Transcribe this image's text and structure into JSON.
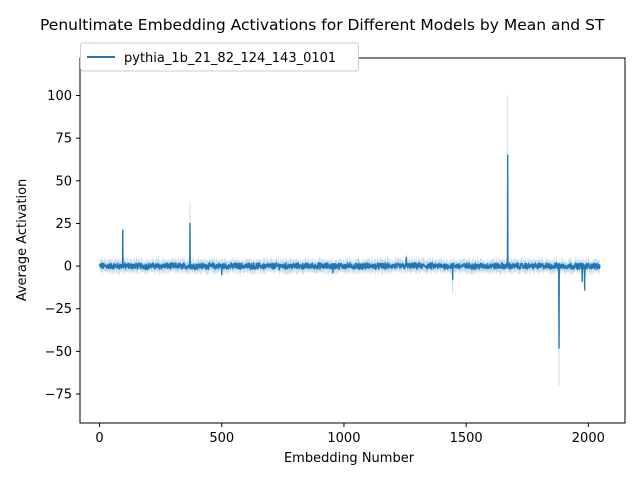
{
  "colors": {
    "series": "#1f77b4",
    "band": "#a6c8e6"
  },
  "chart_data": {
    "type": "line",
    "title": "Penultimate Embedding Activations for Different Models by Mean and ST",
    "xlabel": "Embedding Number",
    "ylabel": "Average Activation",
    "xlim": [
      -80,
      2150
    ],
    "ylim": [
      -92,
      122
    ],
    "xticks": [
      0,
      500,
      1000,
      1500,
      2000
    ],
    "yticks": [
      -75,
      -50,
      -25,
      0,
      25,
      50,
      75,
      100
    ],
    "xtick_labels": [
      "0",
      "500",
      "1000",
      "1500",
      "2000"
    ],
    "ytick_labels": [
      "−75",
      "−50",
      "−25",
      "0",
      "25",
      "50",
      "75",
      "100"
    ],
    "grid": false,
    "legend_position": "top-left",
    "x_count": 2048,
    "series": [
      {
        "name": "pythia_1b_21_82_124_143_0101",
        "color": "#1f77b4",
        "baseline_noise": 1.5,
        "band_width": 3.5,
        "spikes": [
          {
            "x": 95,
            "y": 21
          },
          {
            "x": 370,
            "y": 25
          },
          {
            "x": 500,
            "y": -5
          },
          {
            "x": 955,
            "y": -4
          },
          {
            "x": 1255,
            "y": 5
          },
          {
            "x": 1445,
            "y": -8
          },
          {
            "x": 1670,
            "y": 65
          },
          {
            "x": 1880,
            "y": -48
          },
          {
            "x": 1975,
            "y": -9
          },
          {
            "x": 1985,
            "y": -14
          }
        ],
        "band_spikes": [
          {
            "x": 370,
            "upper": 38
          },
          {
            "x": 1670,
            "upper": 100
          },
          {
            "x": 1880,
            "lower": -70
          },
          {
            "x": 1445,
            "lower": -16
          }
        ]
      }
    ]
  }
}
